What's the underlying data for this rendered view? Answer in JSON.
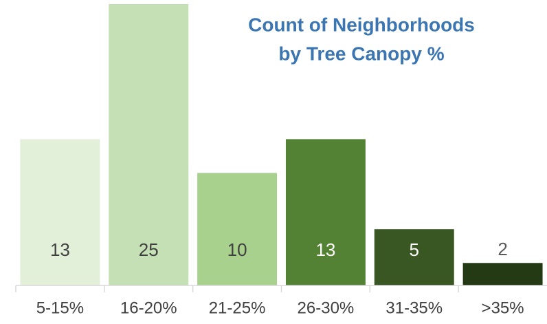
{
  "chart_data": {
    "type": "bar",
    "title": [
      "Count of Neighborhoods",
      "by Tree Canopy %"
    ],
    "categories": [
      "5-15%",
      "16-20%",
      "21-25%",
      "26-30%",
      "31-35%",
      ">35%"
    ],
    "values": [
      13,
      25,
      10,
      13,
      5,
      2
    ],
    "colors": [
      "#e2efd9",
      "#c5e0b4",
      "#a9d18e",
      "#548235",
      "#385723",
      "#233a15"
    ],
    "value_label_colors": [
      "#404040",
      "#404040",
      "#404040",
      "#ffffff",
      "#ffffff",
      "#595959"
    ],
    "title_color": "#3b76b3",
    "ylim": [
      0,
      25
    ],
    "grid": false
  }
}
